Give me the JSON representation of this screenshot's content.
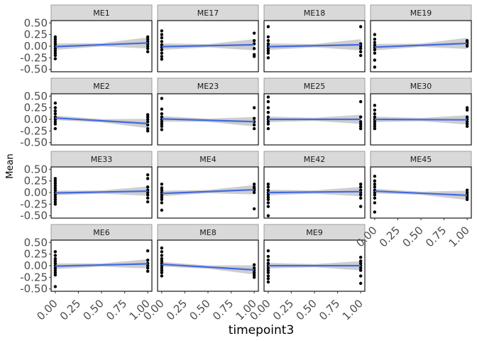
{
  "chart_data": {
    "type": "scatter",
    "layout": "faceted small multiples, 4 columns, free scales off",
    "xlabel": "timepoint3",
    "ylabel": "Mean",
    "xlim": [
      0,
      1
    ],
    "ylim": [
      -0.55,
      0.55
    ],
    "x_ticks": [
      "0.00",
      "0.25",
      "0.50",
      "0.75",
      "1.00"
    ],
    "y_ticks": [
      "-0.50",
      "-0.25",
      "0.00",
      "0.25",
      "0.50"
    ],
    "y_tick_values": [
      -0.5,
      -0.25,
      0,
      0.25,
      0.5
    ],
    "x_tick_values": [
      0,
      0.25,
      0.5,
      0.75,
      1
    ],
    "colors": {
      "strip_fill": "#d9d9d9",
      "panel_border": "#000000",
      "line": "#4169e1",
      "ribbon": "#bebebe",
      "point": "#000000",
      "tick_text": "#4d4d4d"
    },
    "series": [
      {
        "name": "ME1",
        "fit": [
          -0.01,
          0.07
        ],
        "band": [
          0.07,
          0.12
        ],
        "points0": [
          0.2,
          0.15,
          0.1,
          0.05,
          0.0,
          -0.05,
          -0.1,
          -0.15,
          -0.2,
          -0.27
        ],
        "points1": [
          0.2,
          0.15,
          0.1,
          0.05,
          0.0,
          -0.05,
          -0.12
        ]
      },
      {
        "name": "ME17",
        "fit": [
          -0.01,
          0.03
        ],
        "band": [
          0.07,
          0.12
        ],
        "points0": [
          0.33,
          0.25,
          0.18,
          0.1,
          0.03,
          -0.02,
          -0.08,
          -0.15,
          -0.22,
          -0.28
        ],
        "points1": [
          0.28,
          0.12,
          0.05,
          -0.05,
          -0.18,
          -0.22
        ]
      },
      {
        "name": "ME18",
        "fit": [
          -0.01,
          0.03
        ],
        "band": [
          0.07,
          0.12
        ],
        "points0": [
          0.42,
          0.2,
          0.12,
          0.05,
          0.0,
          -0.05,
          -0.1,
          -0.15,
          -0.25
        ],
        "points1": [
          0.42,
          0.05,
          0.0,
          -0.05,
          -0.12,
          -0.2
        ]
      },
      {
        "name": "ME19",
        "fit": [
          -0.02,
          0.06
        ],
        "band": [
          0.07,
          0.12
        ],
        "points0": [
          0.25,
          0.15,
          0.08,
          0.02,
          -0.03,
          -0.08,
          -0.15,
          -0.3,
          -0.45
        ],
        "points1": [
          0.12,
          0.08,
          0.05,
          0.0
        ]
      },
      {
        "name": "ME2",
        "fit": [
          0.03,
          -0.09
        ],
        "band": [
          0.05,
          0.1
        ],
        "points0": [
          0.35,
          0.25,
          0.18,
          0.12,
          0.05,
          0.0,
          -0.05,
          -0.1,
          -0.2
        ],
        "points1": [
          0.1,
          0.05,
          0.0,
          -0.05,
          -0.12,
          -0.2,
          -0.25
        ]
      },
      {
        "name": "ME23",
        "fit": [
          0.01,
          -0.05
        ],
        "band": [
          0.06,
          0.1
        ],
        "points0": [
          0.45,
          0.22,
          0.12,
          0.05,
          0.0,
          -0.05,
          -0.1,
          -0.15,
          -0.22
        ],
        "points1": [
          0.25,
          0.02,
          -0.05,
          -0.12,
          -0.2
        ]
      },
      {
        "name": "ME25",
        "fit": [
          0.0,
          0.0
        ],
        "band": [
          0.06,
          0.1
        ],
        "points0": [
          0.48,
          0.38,
          0.25,
          0.15,
          0.05,
          0.0,
          -0.05,
          -0.1,
          -0.2
        ],
        "points1": [
          0.38,
          0.05,
          -0.05,
          -0.1,
          -0.15,
          -0.2
        ]
      },
      {
        "name": "ME30",
        "fit": [
          0.0,
          -0.01
        ],
        "band": [
          0.06,
          0.1
        ],
        "points0": [
          0.3,
          0.2,
          0.12,
          0.05,
          0.0,
          -0.05,
          -0.1,
          -0.15,
          -0.2
        ],
        "points1": [
          0.25,
          0.2,
          0.05,
          0.0,
          -0.05,
          -0.1,
          -0.15
        ]
      },
      {
        "name": "ME33",
        "fit": [
          -0.01,
          0.03
        ],
        "band": [
          0.05,
          0.1
        ],
        "points0": [
          0.3,
          0.25,
          0.2,
          0.15,
          0.1,
          0.05,
          0.0,
          -0.05,
          -0.1,
          -0.15,
          -0.2,
          -0.25
        ],
        "points1": [
          0.38,
          0.3,
          0.12,
          0.05,
          0.0,
          -0.05,
          -0.12,
          -0.2
        ]
      },
      {
        "name": "ME4",
        "fit": [
          -0.02,
          0.06
        ],
        "band": [
          0.06,
          0.1
        ],
        "points0": [
          0.18,
          0.1,
          0.05,
          0.0,
          -0.05,
          -0.1,
          -0.15,
          -0.22,
          -0.38
        ],
        "points1": [
          0.18,
          0.12,
          0.08,
          0.05,
          0.0,
          -0.35
        ]
      },
      {
        "name": "ME42",
        "fit": [
          0.0,
          0.02
        ],
        "band": [
          0.06,
          0.1
        ],
        "points0": [
          0.18,
          0.12,
          0.05,
          0.0,
          -0.05,
          -0.1,
          -0.15,
          -0.22,
          -0.3,
          -0.5
        ],
        "points1": [
          0.18,
          0.12,
          0.05,
          0.0,
          -0.05,
          -0.12,
          -0.3
        ]
      },
      {
        "name": "ME45",
        "fit": [
          0.03,
          -0.06
        ],
        "band": [
          0.05,
          0.1
        ],
        "points0": [
          0.35,
          0.25,
          0.18,
          0.12,
          0.05,
          0.0,
          -0.05,
          -0.12,
          -0.22,
          -0.42
        ],
        "points1": [
          0.05,
          0.0,
          -0.05,
          -0.1,
          -0.15
        ]
      },
      {
        "name": "ME6",
        "fit": [
          -0.01,
          0.04
        ],
        "band": [
          0.06,
          0.1
        ],
        "points0": [
          0.3,
          0.22,
          0.15,
          0.1,
          0.05,
          0.0,
          -0.05,
          -0.1,
          -0.15,
          -0.2,
          -0.45
        ],
        "points1": [
          0.32,
          0.12,
          0.05,
          0.0,
          -0.05,
          -0.12
        ]
      },
      {
        "name": "ME8",
        "fit": [
          0.03,
          -0.09
        ],
        "band": [
          0.05,
          0.1
        ],
        "points0": [
          0.38,
          0.3,
          0.22,
          0.15,
          0.1,
          0.05,
          0.0,
          -0.05,
          -0.1,
          -0.15,
          -0.22
        ],
        "points1": [
          0.02,
          -0.05,
          -0.1,
          -0.15,
          -0.2,
          -0.25
        ]
      },
      {
        "name": "ME9",
        "fit": [
          0.0,
          0.0
        ],
        "band": [
          0.06,
          0.1
        ],
        "points0": [
          0.32,
          0.2,
          0.12,
          0.05,
          0.0,
          -0.05,
          -0.1,
          -0.15,
          -0.22,
          -0.28,
          -0.35
        ],
        "points1": [
          0.18,
          0.1,
          0.05,
          0.0,
          -0.05,
          -0.1,
          -0.22,
          -0.38
        ]
      }
    ]
  }
}
